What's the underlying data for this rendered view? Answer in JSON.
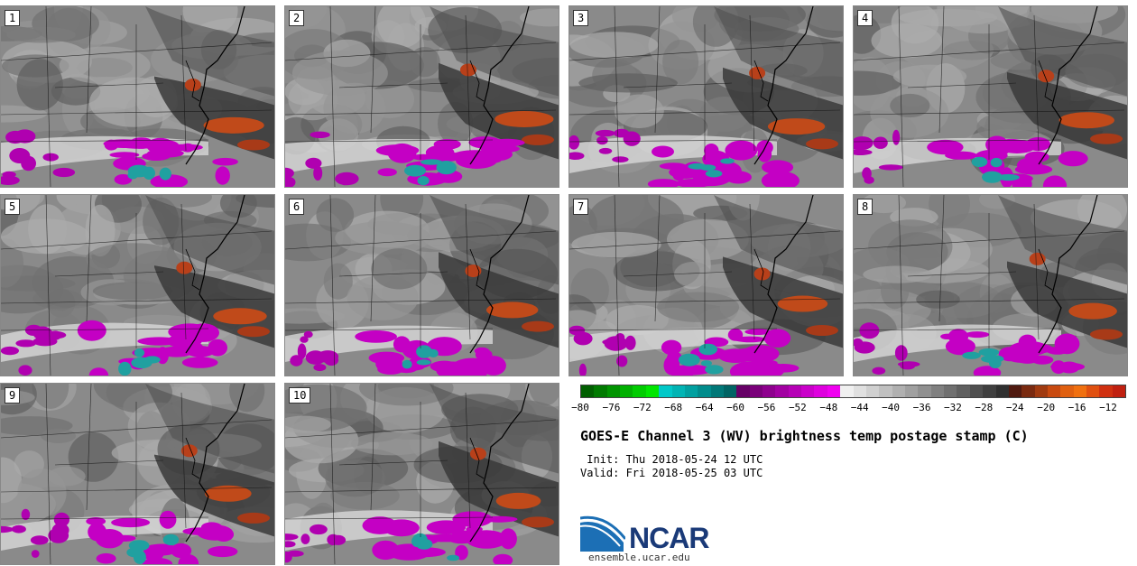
{
  "panels": [
    {
      "label": "1"
    },
    {
      "label": "2"
    },
    {
      "label": "3"
    },
    {
      "label": "4"
    },
    {
      "label": "5"
    },
    {
      "label": "6"
    },
    {
      "label": "7"
    },
    {
      "label": "8"
    },
    {
      "label": "9"
    },
    {
      "label": "10"
    }
  ],
  "colorbar": {
    "colors": [
      "#005f00",
      "#007a00",
      "#009400",
      "#00b000",
      "#00cc00",
      "#00e600",
      "#00c8c8",
      "#00b4b4",
      "#00a0a0",
      "#008c8c",
      "#007878",
      "#006464",
      "#660066",
      "#7a007a",
      "#8e008e",
      "#a200a2",
      "#b600b6",
      "#ca00ca",
      "#de00de",
      "#f000f0",
      "#f0f0f0",
      "#e0e0e0",
      "#d0d0d0",
      "#c0c0c0",
      "#b0b0b0",
      "#a0a0a0",
      "#909090",
      "#808080",
      "#707070",
      "#606060",
      "#505050",
      "#404040",
      "#303030",
      "#501a10",
      "#7a2a10",
      "#a03a10",
      "#c84a10",
      "#e06010",
      "#f07010",
      "#e05010",
      "#d03010",
      "#c02010"
    ],
    "ticks": [
      "−80",
      "−76",
      "−72",
      "−68",
      "−64",
      "−60",
      "−56",
      "−52",
      "−48",
      "−44",
      "−40",
      "−36",
      "−32",
      "−28",
      "−24",
      "−20",
      "−16",
      "−12"
    ]
  },
  "title": "GOES-E Channel 3 (WV) brightness temp postage stamp (C)",
  "init": " Init: Thu 2018-05-24 12 UTC",
  "valid": "Valid: Fri 2018-05-25 03 UTC",
  "logo_text": "NCAR",
  "url": "ensemble.ucar.edu"
}
